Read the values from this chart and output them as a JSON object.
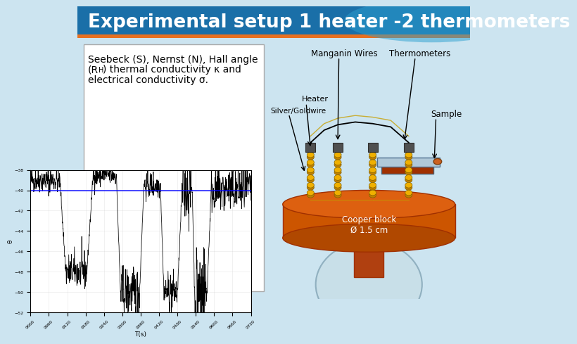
{
  "title": "Experimental setup 1 heater -2 thermometers",
  "title_bg_color1": "#1a6fa8",
  "title_bg_color2": "#2aa0d0",
  "title_text_color": "#ffffff",
  "slide_bg_color": "#cce4f0",
  "orange_accent_color": "#e87020",
  "label_manganin": "Manganin Wires",
  "label_thermometers": "Thermometers",
  "label_heater": "Heater",
  "label_silvergold": "Silver/Goldwire",
  "label_sample": "Sample",
  "label_cooper": "Cooper block\nØ 1.5 cm",
  "copper_color": "#cc5500",
  "copper_dark": "#a03000",
  "ball_color": "#c8dfe8",
  "post_color": "#b04010",
  "coil_color": "#f0b000",
  "coil_dark": "#c08000",
  "connector_color": "#505050",
  "sample_color": "#b0c8d8",
  "arrow_color": "#111111"
}
